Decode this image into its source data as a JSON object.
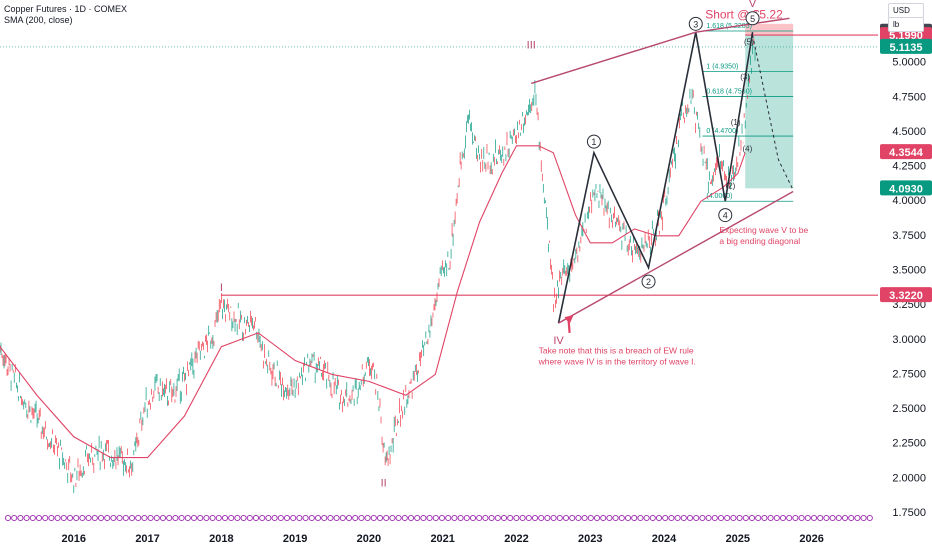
{
  "header": {
    "symbol_line": "Copper Futures · 1D · COMEX",
    "sma_line": "SMA (200, close)"
  },
  "scale_units": {
    "currency": "USD",
    "log_toggle": "lb"
  },
  "chart_data": {
    "type": "line",
    "title": "Copper Futures · 1D · COMEX",
    "xlabel": "",
    "ylabel": "",
    "x_range": [
      2015.0,
      2026.9
    ],
    "ylim": [
      1.75,
      5.25
    ],
    "y_ticks": [
      "1.7500",
      "2.0000",
      "2.2500",
      "2.5000",
      "2.7500",
      "3.0000",
      "3.2500",
      "3.5000",
      "3.7500",
      "4.0000",
      "4.2500",
      "4.5000",
      "4.7500",
      "5.0000"
    ],
    "x_ticks": [
      {
        "x": 2016.0,
        "label": "2016"
      },
      {
        "x": 2017.0,
        "label": "2017"
      },
      {
        "x": 2018.0,
        "label": "2018"
      },
      {
        "x": 2019.0,
        "label": "2019"
      },
      {
        "x": 2020.0,
        "label": "2020"
      },
      {
        "x": 2021.0,
        "label": "2021"
      },
      {
        "x": 2022.0,
        "label": "2022"
      },
      {
        "x": 2023.0,
        "label": "2023"
      },
      {
        "x": 2024.0,
        "label": "2024"
      },
      {
        "x": 2025.0,
        "label": "2025"
      },
      {
        "x": 2026.0,
        "label": "2026"
      }
    ],
    "series": [
      {
        "name": "",
        "color": "#089981",
        "style": "price",
        "x": [
          2015.0,
          2015.15,
          2015.35,
          2015.6,
          2015.85,
          2016.0,
          2016.2,
          2016.4,
          2016.6,
          2016.8,
          2016.95,
          2017.1,
          2017.3,
          2017.5,
          2017.7,
          2017.9,
          2018.0,
          2018.1,
          2018.3,
          2018.45,
          2018.6,
          2018.8,
          2019.0,
          2019.2,
          2019.4,
          2019.6,
          2019.8,
          2019.95,
          2020.05,
          2020.15,
          2020.22,
          2020.3,
          2020.4,
          2020.6,
          2020.8,
          2020.95,
          2021.1,
          2021.25,
          2021.35,
          2021.5,
          2021.7,
          2021.9,
          2022.0,
          2022.15,
          2022.25,
          2022.35,
          2022.5,
          2022.6,
          2022.75,
          2022.9,
          2023.05,
          2023.2,
          2023.4,
          2023.6,
          2023.8,
          2023.95,
          2024.1,
          2024.25,
          2024.38,
          2024.5,
          2024.6,
          2024.75,
          2024.9,
          2025.0,
          2025.1,
          2025.2,
          2025.25
        ],
        "y": [
          2.95,
          2.75,
          2.55,
          2.35,
          2.15,
          2.0,
          2.15,
          2.2,
          2.15,
          2.1,
          2.5,
          2.65,
          2.6,
          2.7,
          2.9,
          3.05,
          3.25,
          3.2,
          3.1,
          3.15,
          2.85,
          2.7,
          2.65,
          2.85,
          2.75,
          2.6,
          2.6,
          2.8,
          2.85,
          2.5,
          2.1,
          2.2,
          2.45,
          2.7,
          3.0,
          3.4,
          3.6,
          4.3,
          4.6,
          4.3,
          4.3,
          4.4,
          4.5,
          4.65,
          4.8,
          4.2,
          3.3,
          3.45,
          3.55,
          3.75,
          4.1,
          3.95,
          3.8,
          3.65,
          3.7,
          3.85,
          4.2,
          4.65,
          4.75,
          4.4,
          4.15,
          4.3,
          4.1,
          4.3,
          4.6,
          5.05,
          5.2
        ]
      },
      {
        "name": "SMA (200, close)",
        "color": "#e04365",
        "style": "sma",
        "x": [
          2015.0,
          2015.5,
          2016.0,
          2016.5,
          2017.0,
          2017.5,
          2018.0,
          2018.5,
          2019.0,
          2019.5,
          2020.0,
          2020.5,
          2020.9,
          2021.2,
          2021.5,
          2021.8,
          2022.0,
          2022.3,
          2022.5,
          2022.8,
          2023.0,
          2023.3,
          2023.6,
          2023.9,
          2024.2,
          2024.5,
          2024.8,
          2025.0,
          2025.1
        ],
        "y": [
          2.95,
          2.6,
          2.3,
          2.15,
          2.15,
          2.45,
          2.95,
          3.05,
          2.85,
          2.75,
          2.7,
          2.6,
          2.75,
          3.35,
          3.85,
          4.2,
          4.4,
          4.4,
          4.35,
          3.9,
          3.7,
          3.7,
          3.8,
          3.75,
          3.75,
          4.0,
          4.1,
          4.2,
          4.35
        ]
      },
      {
        "name": "",
        "color": "#2a2e39",
        "style": "wave",
        "x": [
          2022.57,
          2023.05,
          2023.79,
          2024.43,
          2024.83,
          2025.2
        ],
        "y": [
          3.12,
          4.35,
          3.52,
          5.22,
          4.0,
          5.22
        ]
      },
      {
        "name": "",
        "color": "#b8476d",
        "style": "trendline",
        "x": [
          2022.2,
          2024.43,
          2025.7
        ],
        "y": [
          4.85,
          5.22,
          5.32
        ]
      },
      {
        "name": "",
        "color": "#b8476d",
        "style": "trendline",
        "x": [
          2022.57,
          2025.75
        ],
        "y": [
          3.12,
          4.07
        ]
      }
    ],
    "horizontal_lines": [
      {
        "y": 3.322,
        "label": "3.3220",
        "color": "#e04365",
        "x_start": 2018.0
      },
      {
        "y": 5.199,
        "label": "5.1990",
        "color": "#e04365",
        "x_start": 2025.1
      }
    ],
    "price_tags": [
      {
        "y": 5.2225,
        "label": "5.2225",
        "color": "#434651"
      },
      {
        "y": 5.199,
        "label": "5.1990",
        "color": "#e04365"
      },
      {
        "y": 5.1135,
        "label": "5.1135",
        "color": "#089981"
      },
      {
        "y": 4.3544,
        "label": "4.3544",
        "color": "#e04365"
      },
      {
        "y": 4.093,
        "label": "4.0930",
        "color": "#089981"
      },
      {
        "y": 3.322,
        "label": "3.3220",
        "color": "#e04365"
      }
    ],
    "fib_levels": [
      {
        "y": 5.2285,
        "label": "1.618 (5.2285)"
      },
      {
        "y": 4.935,
        "label": "1 (4.9350)"
      },
      {
        "y": 4.756,
        "label": "0.618 (4.7560)"
      },
      {
        "y": 4.47,
        "label": "0 (4.4700)"
      },
      {
        "y": 4.0,
        "label": "(4.0000)"
      }
    ],
    "wave_labels": [
      {
        "label": "I",
        "x": 2018.0,
        "y": 3.38,
        "circled": false,
        "color": "#b8476d"
      },
      {
        "label": "II",
        "x": 2020.2,
        "y": 1.97,
        "circled": false,
        "color": "#b8476d"
      },
      {
        "label": "III",
        "x": 2022.2,
        "y": 5.13,
        "circled": false,
        "color": "#b8476d"
      },
      {
        "label": "IV",
        "x": 2022.57,
        "y": 3.0,
        "circled": false,
        "color": "#b8476d"
      },
      {
        "label": "V",
        "x": 2025.2,
        "y": 5.43,
        "circled": false,
        "color": "#b8476d"
      },
      {
        "label": "1",
        "x": 2023.05,
        "y": 4.43,
        "circled": true,
        "color": "#2a2e39"
      },
      {
        "label": "2",
        "x": 2023.79,
        "y": 3.42,
        "circled": true,
        "color": "#2a2e39"
      },
      {
        "label": "3",
        "x": 2024.43,
        "y": 5.28,
        "circled": true,
        "color": "#2a2e39"
      },
      {
        "label": "4",
        "x": 2024.83,
        "y": 3.9,
        "circled": true,
        "color": "#2a2e39"
      },
      {
        "label": "5",
        "x": 2025.2,
        "y": 5.32,
        "circled": true,
        "color": "#2a2e39"
      }
    ],
    "minor_labels": [
      {
        "label": "(1)",
        "x": 2024.97,
        "y": 4.55
      },
      {
        "label": "(2)",
        "x": 2024.9,
        "y": 4.09
      },
      {
        "label": "(3)",
        "x": 2025.1,
        "y": 4.88
      },
      {
        "label": "(4)",
        "x": 2025.13,
        "y": 4.36
      },
      {
        "label": "(5)",
        "x": 2025.15,
        "y": 5.13
      }
    ],
    "short_position": {
      "label": "Short @ $5.22",
      "x_start": 2025.1,
      "x_end": 2025.75,
      "entry": 5.199,
      "stop": 5.2225,
      "target": 4.093
    },
    "annotations": [
      {
        "text": "Take note that this is a breach of EW rule",
        "x": 2022.3,
        "y": 2.9,
        "color": "#e04365"
      },
      {
        "text": "where wave IV is in the territory of wave I.",
        "x": 2022.3,
        "y": 2.82,
        "color": "#e04365"
      },
      {
        "text": "Expecting wave V to be",
        "x": 2024.75,
        "y": 3.77,
        "color": "#e04365"
      },
      {
        "text": "a big ending diagonal",
        "x": 2024.75,
        "y": 3.69,
        "color": "#e04365"
      }
    ],
    "grid": false,
    "legend": "none"
  }
}
